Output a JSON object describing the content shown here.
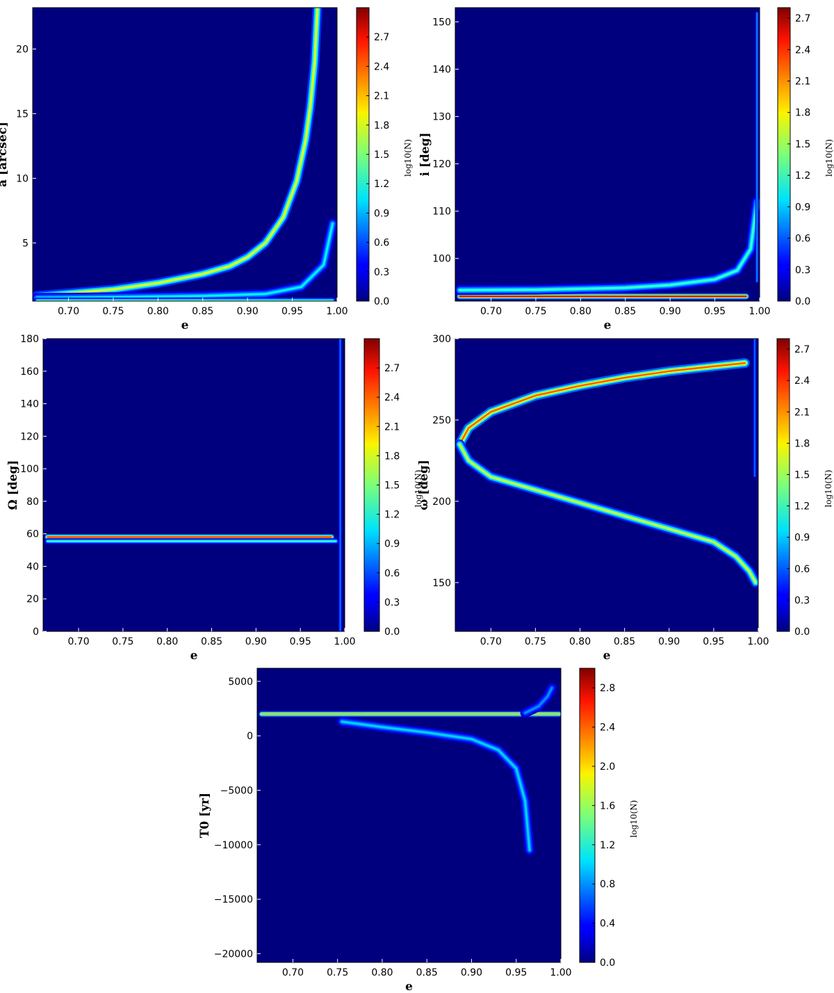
{
  "chart_data": [
    {
      "type": "heatmap",
      "xlabel": "e",
      "ylabel": "a [arcsec]",
      "colorbar_label": "log10(N)",
      "xlim": [
        0.66,
        1.0
      ],
      "ylim": [
        0.5,
        23.2
      ],
      "xticks": [
        "0.70",
        "0.75",
        "0.80",
        "0.85",
        "0.90",
        "0.95",
        "1.00"
      ],
      "yticks": [
        "5",
        "10",
        "15",
        "20"
      ],
      "colorbar_range": [
        0.0,
        3.0
      ],
      "colorbar_ticks": [
        "0.0",
        "0.3",
        "0.6",
        "0.9",
        "1.2",
        "1.5",
        "1.8",
        "2.1",
        "2.4",
        "2.7"
      ],
      "background_color": "#00007f",
      "features": [
        {
          "kind": "curve",
          "label": "main branch",
          "points": [
            [
              0.665,
              0.9
            ],
            [
              0.7,
              1.1
            ],
            [
              0.75,
              1.4
            ],
            [
              0.8,
              1.9
            ],
            [
              0.85,
              2.6
            ],
            [
              0.88,
              3.2
            ],
            [
              0.9,
              3.9
            ],
            [
              0.92,
              5.0
            ],
            [
              0.94,
              7.0
            ],
            [
              0.955,
              9.8
            ],
            [
              0.965,
              13.0
            ],
            [
              0.97,
              15.5
            ],
            [
              0.975,
              19.0
            ],
            [
              0.978,
              23.2
            ]
          ],
          "peak": 1.8
        },
        {
          "kind": "curve",
          "label": "low branch",
          "points": [
            [
              0.665,
              0.75
            ],
            [
              0.75,
              0.8
            ],
            [
              0.85,
              0.9
            ],
            [
              0.92,
              1.05
            ],
            [
              0.96,
              1.6
            ],
            [
              0.985,
              3.3
            ],
            [
              0.995,
              6.5
            ]
          ],
          "peak": 1.1
        },
        {
          "kind": "band",
          "label": "floor",
          "e": [
            0.665,
            0.995
          ],
          "y": 0.55,
          "peak": 1.3
        }
      ]
    },
    {
      "type": "heatmap",
      "xlabel": "e",
      "ylabel": "i [deg]",
      "colorbar_label": "log10(N)",
      "xlim": [
        0.66,
        1.0
      ],
      "ylim": [
        91,
        153
      ],
      "xticks": [
        "0.70",
        "0.75",
        "0.80",
        "0.85",
        "0.90",
        "0.95",
        "1.00"
      ],
      "yticks": [
        "100",
        "110",
        "120",
        "130",
        "140",
        "150"
      ],
      "colorbar_range": [
        0.0,
        2.8
      ],
      "colorbar_ticks": [
        "0.0",
        "0.3",
        "0.6",
        "0.9",
        "1.2",
        "1.5",
        "1.8",
        "2.1",
        "2.4",
        "2.7"
      ],
      "background_color": "#00007f",
      "features": [
        {
          "kind": "band",
          "label": "high-density band",
          "e": [
            0.665,
            0.985
          ],
          "y": 92.0,
          "peak": 2.5
        },
        {
          "kind": "curve",
          "label": "rising branch",
          "points": [
            [
              0.665,
              93.3
            ],
            [
              0.75,
              93.4
            ],
            [
              0.85,
              93.8
            ],
            [
              0.9,
              94.4
            ],
            [
              0.95,
              95.6
            ],
            [
              0.975,
              97.5
            ],
            [
              0.99,
              102.0
            ],
            [
              0.997,
              112.0
            ]
          ],
          "peak": 1.2
        },
        {
          "kind": "vertical",
          "label": "edge",
          "e": 0.997,
          "y": [
            95,
            152
          ],
          "peak": 0.9
        }
      ]
    },
    {
      "type": "heatmap",
      "xlabel": "e",
      "ylabel": "Ω [deg]",
      "colorbar_label": "log10(N)",
      "xlim": [
        0.66,
        1.0
      ],
      "ylim": [
        0,
        180
      ],
      "xticks": [
        "0.70",
        "0.75",
        "0.80",
        "0.85",
        "0.90",
        "0.95",
        "1.00"
      ],
      "yticks": [
        "0",
        "20",
        "40",
        "60",
        "80",
        "100",
        "120",
        "140",
        "160",
        "180"
      ],
      "colorbar_range": [
        0.0,
        3.0
      ],
      "colorbar_ticks": [
        "0.0",
        "0.3",
        "0.6",
        "0.9",
        "1.2",
        "1.5",
        "1.8",
        "2.1",
        "2.4",
        "2.7"
      ],
      "background_color": "#00007f",
      "features": [
        {
          "kind": "band",
          "label": "main band",
          "e": [
            0.665,
            0.985
          ],
          "y": 58.0,
          "peak": 2.5
        },
        {
          "kind": "band",
          "label": "lower band",
          "e": [
            0.665,
            0.99
          ],
          "y": 55.5,
          "peak": 1.3
        },
        {
          "kind": "vertical",
          "label": "edge",
          "e": 0.995,
          "y": [
            0,
            180
          ],
          "peak": 0.9
        }
      ]
    },
    {
      "type": "heatmap",
      "xlabel": "e",
      "ylabel": "ω [deg]",
      "colorbar_label": "log10(N)",
      "xlim": [
        0.66,
        1.0
      ],
      "ylim": [
        120,
        300
      ],
      "xticks": [
        "0.70",
        "0.75",
        "0.80",
        "0.85",
        "0.90",
        "0.95",
        "1.00"
      ],
      "yticks": [
        "150",
        "200",
        "250",
        "300"
      ],
      "colorbar_range": [
        0.0,
        2.8
      ],
      "colorbar_ticks": [
        "0.0",
        "0.3",
        "0.6",
        "0.9",
        "1.2",
        "1.5",
        "1.8",
        "2.1",
        "2.4",
        "2.7"
      ],
      "background_color": "#00007f",
      "features": [
        {
          "kind": "curve",
          "label": "upper arc",
          "points": [
            [
              0.665,
              235
            ],
            [
              0.675,
              245
            ],
            [
              0.7,
              255
            ],
            [
              0.75,
              265
            ],
            [
              0.8,
              271
            ],
            [
              0.85,
              276
            ],
            [
              0.9,
              280
            ],
            [
              0.95,
              283
            ],
            [
              0.985,
              285
            ]
          ],
          "peak": 2.2
        },
        {
          "kind": "curve",
          "label": "lower arc",
          "points": [
            [
              0.665,
              235
            ],
            [
              0.675,
              225
            ],
            [
              0.7,
              215
            ],
            [
              0.75,
              207
            ],
            [
              0.8,
              199
            ],
            [
              0.85,
              191
            ],
            [
              0.9,
              183
            ],
            [
              0.95,
              175
            ],
            [
              0.975,
              166
            ],
            [
              0.99,
              157
            ],
            [
              0.997,
              150
            ]
          ],
          "peak": 1.6
        },
        {
          "kind": "vertical",
          "label": "edge",
          "e": 0.996,
          "y": [
            215,
            300
          ],
          "peak": 0.8
        }
      ]
    },
    {
      "type": "heatmap",
      "xlabel": "e",
      "ylabel": "T0 [yr]",
      "colorbar_label": "log10(N)",
      "xlim": [
        0.66,
        1.0
      ],
      "ylim": [
        -20800,
        6200
      ],
      "xticks": [
        "0.70",
        "0.75",
        "0.80",
        "0.85",
        "0.90",
        "0.95",
        "1.00"
      ],
      "yticks": [
        "−20000",
        "−15000",
        "−10000",
        "−5000",
        "0",
        "5000"
      ],
      "colorbar_range": [
        0.0,
        3.0
      ],
      "colorbar_ticks": [
        "0.0",
        "0.4",
        "0.8",
        "1.2",
        "1.6",
        "2.0",
        "2.4",
        "2.8"
      ],
      "background_color": "#00007f",
      "features": [
        {
          "kind": "band",
          "label": "main band",
          "e": [
            0.665,
            0.998
          ],
          "y": 2000,
          "peak": 2.1
        },
        {
          "kind": "curve",
          "label": "descending branch",
          "points": [
            [
              0.755,
              1300
            ],
            [
              0.8,
              800
            ],
            [
              0.85,
              300
            ],
            [
              0.9,
              -300
            ],
            [
              0.93,
              -1300
            ],
            [
              0.95,
              -3000
            ],
            [
              0.96,
              -6000
            ],
            [
              0.965,
              -10500
            ]
          ],
          "peak": 1.0
        },
        {
          "kind": "curve",
          "label": "rising branch",
          "points": [
            [
              0.96,
              2100
            ],
            [
              0.975,
              2700
            ],
            [
              0.985,
              3600
            ],
            [
              0.99,
              4400
            ]
          ],
          "peak": 0.8
        }
      ]
    }
  ]
}
